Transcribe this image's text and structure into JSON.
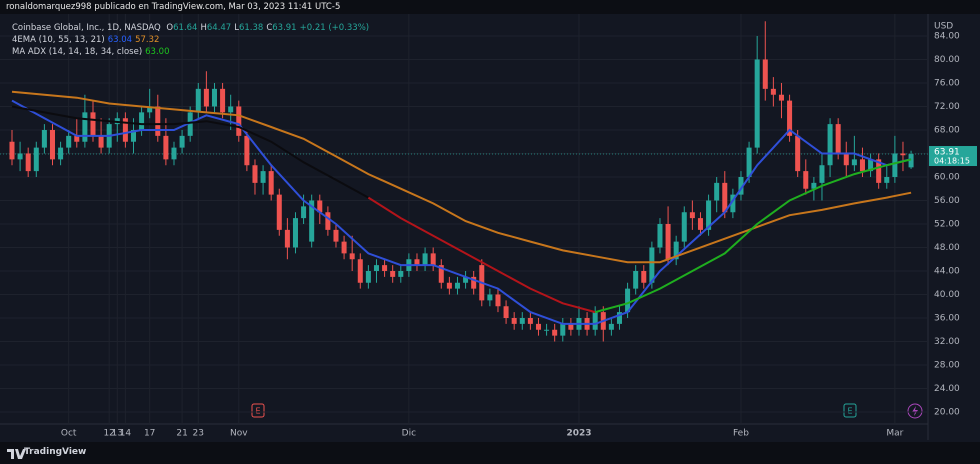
{
  "header": "ronaldomarquez998 publicado en TradingView.com, Mar 03, 2023 11:41 UTC-5",
  "footer": "TradingView",
  "chart_data": {
    "type": "candlestick",
    "title": "Coinbase Global, Inc., 1D, NASDAQ",
    "quote": {
      "labels": [
        "O",
        "H",
        "L",
        "C"
      ],
      "values": [
        61.64,
        64.47,
        61.38,
        63.91
      ],
      "change": "+0.21 (+0.33%)",
      "countdown": "04:18:15"
    },
    "currency": "USD",
    "up_color": "#26a69a",
    "down_color": "#ef5350",
    "open": [
      66,
      63,
      64,
      61,
      65,
      68,
      63,
      65,
      67,
      66,
      71,
      67,
      65,
      69,
      70,
      66,
      68,
      71,
      72,
      67,
      63,
      65,
      67,
      71,
      75,
      72,
      75,
      71,
      72,
      67,
      62,
      59,
      61,
      57,
      51,
      48,
      53,
      49,
      56,
      54,
      51,
      49,
      47,
      46,
      42,
      44,
      45,
      44,
      43,
      44,
      46,
      45,
      47,
      45,
      42,
      41,
      42,
      43,
      45,
      39,
      40,
      38,
      36,
      35,
      36,
      35,
      34,
      34,
      33,
      35,
      34,
      36,
      34,
      37,
      34,
      35,
      37,
      41,
      44,
      42,
      48,
      52,
      46,
      49,
      54,
      53,
      51,
      56,
      59,
      54,
      57,
      60,
      65,
      80,
      75,
      74,
      73,
      67,
      61,
      58,
      59,
      62,
      69,
      64,
      62,
      63,
      61,
      63,
      59,
      60,
      64,
      61.64
    ],
    "high": [
      68,
      66,
      65,
      66,
      69,
      69,
      66,
      68,
      70,
      74,
      73,
      70,
      70,
      71,
      71,
      70,
      72,
      75,
      74,
      70,
      66,
      68,
      72,
      76,
      78,
      76,
      76,
      74,
      73,
      68,
      63,
      62,
      62,
      58,
      53,
      54,
      57,
      57,
      57,
      55,
      52,
      50,
      50,
      47,
      45,
      46,
      46,
      45,
      45,
      47,
      47,
      48,
      48,
      46,
      43,
      43,
      44,
      44,
      46,
      41,
      41,
      39,
      37,
      37,
      37,
      36,
      35,
      35,
      36,
      36,
      38,
      37,
      38,
      38,
      36,
      38,
      42,
      45,
      45,
      49,
      53,
      55,
      50,
      55,
      56,
      54,
      57,
      60,
      61,
      58,
      61,
      66,
      84,
      86.5,
      77,
      76,
      74,
      68,
      63,
      60,
      64,
      70,
      70,
      66,
      67,
      65,
      64,
      64,
      62,
      67,
      66,
      64.47
    ],
    "low": [
      62,
      61,
      60,
      60,
      64,
      62,
      62,
      64,
      65,
      65,
      66,
      64,
      64,
      66,
      65,
      64,
      67,
      70,
      66,
      62,
      62,
      64,
      66,
      70,
      71,
      71,
      70,
      68,
      66,
      61,
      57,
      57,
      56,
      50,
      46,
      47,
      52,
      48,
      52,
      50,
      48,
      46,
      44,
      41,
      41,
      42,
      43,
      42,
      42,
      43,
      44,
      44,
      44,
      41,
      40,
      40,
      41,
      40,
      38,
      38,
      37,
      35,
      34,
      34,
      34,
      33,
      33,
      32,
      32,
      33,
      33,
      33,
      33,
      32,
      33,
      34,
      36,
      40,
      41,
      41,
      47,
      45,
      45,
      48,
      51,
      50,
      50,
      54,
      53,
      53,
      56,
      59,
      64,
      73,
      72,
      70,
      66,
      60,
      57,
      56,
      56,
      60,
      63,
      60,
      61,
      60,
      60,
      58,
      58,
      59,
      61,
      61.38
    ],
    "close": [
      63,
      64,
      61,
      65,
      68,
      63,
      65,
      67,
      66,
      71,
      67,
      65,
      69,
      70,
      66,
      68,
      71,
      72,
      67,
      63,
      65,
      67,
      71,
      75,
      72,
      75,
      71,
      72,
      67,
      62,
      59,
      61,
      57,
      51,
      48,
      53,
      55,
      56,
      54,
      51,
      49,
      47,
      46,
      42,
      44,
      45,
      44,
      43,
      44,
      46,
      45,
      47,
      45,
      42,
      41,
      42,
      43,
      41,
      39,
      40,
      38,
      36,
      35,
      36,
      35,
      34,
      34,
      33,
      35,
      34,
      36,
      34,
      37,
      34,
      35,
      37,
      41,
      44,
      42,
      48,
      52,
      46,
      49,
      54,
      53,
      51,
      56,
      59,
      54,
      57,
      60,
      65,
      80,
      75,
      74,
      73,
      67,
      61,
      58,
      59,
      62,
      69,
      64,
      62,
      63,
      61,
      63,
      59,
      60,
      64,
      63.7,
      63.91
    ],
    "indicators": [
      {
        "label": "4EMA (10, 55, 13, 21)",
        "readouts": [
          {
            "text": "63.04",
            "color": "#2962ff"
          },
          {
            "text": "57.32",
            "color": "#e0902a"
          }
        ],
        "lines": [
          {
            "color": "#2f4fd8",
            "x": [
              0,
              4,
              8,
              12,
              16,
              20,
              24,
              28,
              32,
              36,
              40,
              44,
              48,
              52,
              56,
              60,
              64,
              68,
              72,
              76,
              80,
              84,
              88,
              92,
              96,
              100,
              104,
              108,
              111
            ],
            "values": [
              73,
              70,
              67,
              67,
              68,
              68,
              70.5,
              69,
              62,
              56,
              52,
              47,
              45,
              45,
              43,
              41,
              37,
              35,
              35,
              37,
              44,
              49,
              54,
              62,
              68,
              64,
              64,
              62,
              63.04
            ]
          },
          {
            "color": "#c7761c",
            "x": [
              0,
              4,
              8,
              12,
              16,
              20,
              24,
              28,
              32,
              36,
              40,
              44,
              48,
              52,
              56,
              60,
              64,
              68,
              72,
              76,
              80,
              84,
              88,
              92,
              96,
              100,
              104,
              108,
              111
            ],
            "values": [
              74.5,
              74,
              73.5,
              72.5,
              72,
              71.5,
              71,
              70.5,
              68.5,
              66.5,
              63.5,
              60.5,
              58,
              55.5,
              52.5,
              50.5,
              49,
              47.5,
              46.5,
              45.5,
              45.5,
              47.5,
              49.5,
              51.5,
              53.5,
              54.4,
              55.5,
              56.5,
              57.32
            ]
          }
        ]
      },
      {
        "label": "MA ADX (14, 14, 18, 34, close)",
        "readouts": [
          {
            "text": "63.00",
            "color": "#1ec41e"
          }
        ],
        "lines": [
          {
            "color": "#0b0b0f",
            "x": [
              0,
              4,
              8,
              12,
              16,
              20,
              24,
              28,
              32,
              36,
              40,
              44
            ],
            "values": [
              72,
              71,
              70,
              69.5,
              69,
              69,
              69.5,
              68.5,
              66,
              62.5,
              59.5,
              56.5
            ]
          },
          {
            "color": "#b3141a",
            "x": [
              44,
              48,
              52,
              56,
              60,
              64,
              68,
              72
            ],
            "values": [
              56.5,
              53,
              50,
              47,
              44,
              41,
              38.5,
              37
            ]
          },
          {
            "color": "#1fae1f",
            "x": [
              72,
              76,
              80,
              84,
              88,
              92,
              96,
              100,
              104,
              108,
              111
            ],
            "values": [
              37,
              38.5,
              41,
              44,
              47,
              52,
              56,
              58.5,
              60.5,
              62,
              63
            ]
          }
        ]
      }
    ],
    "xlim": [
      -1.48,
      113.09
    ],
    "ylim": [
      17.96,
      87.74
    ],
    "xticks": [
      {
        "value": 7,
        "label": "Oct"
      },
      17,
      {
        "value": 28,
        "label": "Nov"
      },
      14,
      {
        "value": 49,
        "label": "Dic"
      },
      12,
      21,
      {
        "value": 70,
        "label": "2023"
      },
      23,
      {
        "value": 90,
        "label": "Feb"
      },
      13,
      {
        "value": 109,
        "label": "Mar"
      }
    ],
    "yticks": [
      {
        "value": 20,
        "label": "20.00"
      },
      {
        "value": 24,
        "label": "24.00"
      },
      {
        "value": 28,
        "label": "28.00"
      },
      {
        "value": 32,
        "label": "32.00"
      },
      {
        "value": 36,
        "label": "36.00"
      },
      {
        "value": 40,
        "label": "40.00"
      },
      {
        "value": 44,
        "label": "44.00"
      },
      {
        "value": 48,
        "label": "48.00"
      },
      {
        "value": 52,
        "label": "52.00"
      },
      {
        "value": 56,
        "label": "56.00"
      },
      {
        "value": 60,
        "label": "60.00"
      },
      {
        "value": 64,
        "label": "64.00"
      },
      {
        "value": 68,
        "label": "68.00"
      },
      {
        "value": 72,
        "label": "72.00"
      },
      {
        "value": 76,
        "label": "76.00"
      },
      {
        "value": 80,
        "label": "80.00"
      },
      {
        "value": 84,
        "label": "84.00"
      }
    ],
    "grid": true
  }
}
